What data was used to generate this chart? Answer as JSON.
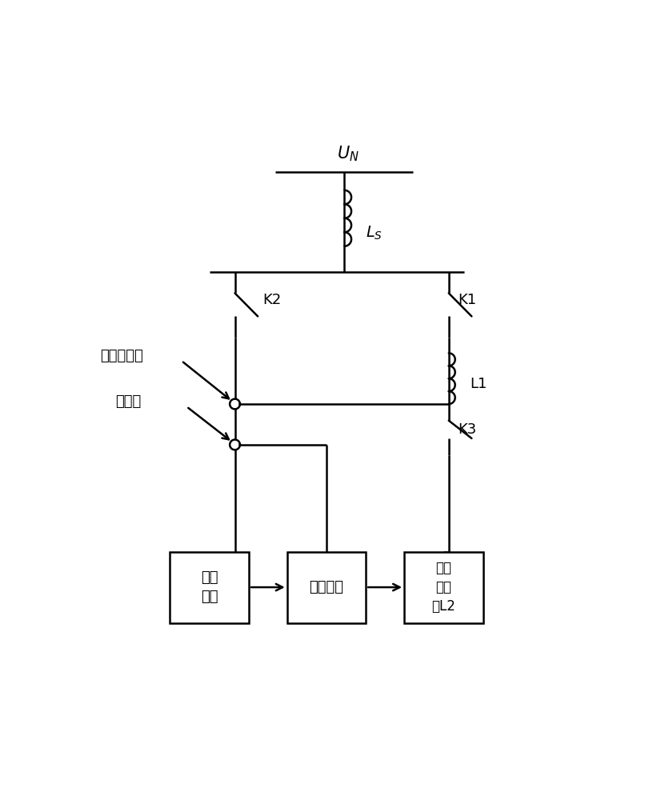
{
  "fig_width": 8.21,
  "fig_height": 10.0,
  "dpi": 100,
  "bg_color": "#ffffff",
  "line_color": "#000000",
  "line_width": 1.8,
  "UN_label": "$U_N$",
  "LS_label": "$L_S$",
  "K1_label": "K1",
  "K2_label": "K2",
  "K3_label": "K3",
  "L1_label": "L1",
  "box1_label": "光伏\n电站",
  "box2_label": "控制系统",
  "box3_label": "磁控\n电抗\n器L2",
  "label1": "光伏并网点",
  "label2": "测试点"
}
